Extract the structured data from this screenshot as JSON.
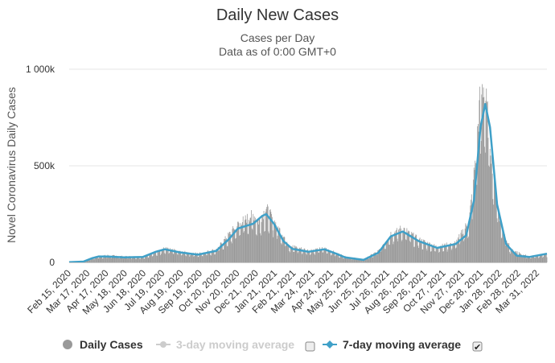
{
  "chart_data": {
    "type": "bar",
    "title": "Daily New Cases",
    "subtitle": [
      "Cases per Day",
      "Data as of 0:00 GMT+0"
    ],
    "ylabel": "Novel Coronavirus Daily Cases",
    "xlabel": "",
    "ylim": [
      0,
      1000000
    ],
    "yticks": [
      {
        "value": 0,
        "label": "0"
      },
      {
        "value": 500000,
        "label": "500k"
      },
      {
        "value": 1000000,
        "label": "1 000k"
      }
    ],
    "xrange": [
      "2020-02-15",
      "2022-04-30"
    ],
    "xticks": [
      "Feb 15, 2020",
      "Mar 17, 2020",
      "Apr 17, 2020",
      "May 18, 2020",
      "Jun 18, 2020",
      "Jul 19, 2020",
      "Aug 19, 2020",
      "Sep 19, 2020",
      "Oct 20, 2020",
      "Nov 20, 2020",
      "Dec 21, 2020",
      "Jan 21, 2021",
      "Feb 21, 2021",
      "Mar 24, 2021",
      "Apr 24, 2021",
      "May 25, 2021",
      "Jun 25, 2021",
      "Jul 26, 2021",
      "Aug 26, 2021",
      "Sep 26, 2021",
      "Oct 27, 2021",
      "Nov 27, 2021",
      "Dec 28, 2021",
      "Jan 28, 2022",
      "Feb 28, 2022",
      "Mar 31, 2022"
    ],
    "grid": true,
    "legend_position": "bottom",
    "series": [
      {
        "name": "Daily Cases",
        "kind": "bar",
        "color": "#999999",
        "visible": true,
        "anchors": [
          {
            "x": "2020-02-15",
            "y": 2000
          },
          {
            "x": "2020-03-10",
            "y": 5000
          },
          {
            "x": "2020-04-01",
            "y": 28000
          },
          {
            "x": "2020-04-20",
            "y": 34000
          },
          {
            "x": "2020-05-18",
            "y": 28000
          },
          {
            "x": "2020-06-18",
            "y": 26000
          },
          {
            "x": "2020-07-10",
            "y": 50000
          },
          {
            "x": "2020-07-25",
            "y": 68000
          },
          {
            "x": "2020-08-19",
            "y": 52000
          },
          {
            "x": "2020-09-19",
            "y": 42000
          },
          {
            "x": "2020-10-20",
            "y": 62000
          },
          {
            "x": "2020-11-15",
            "y": 150000
          },
          {
            "x": "2020-11-28",
            "y": 190000
          },
          {
            "x": "2020-12-21",
            "y": 230000
          },
          {
            "x": "2020-12-30",
            "y": 195000
          },
          {
            "x": "2021-01-12",
            "y": 260000
          },
          {
            "x": "2021-01-25",
            "y": 200000
          },
          {
            "x": "2021-02-21",
            "y": 80000
          },
          {
            "x": "2021-03-24",
            "y": 58000
          },
          {
            "x": "2021-04-20",
            "y": 68000
          },
          {
            "x": "2021-05-25",
            "y": 28000
          },
          {
            "x": "2021-06-25",
            "y": 14000
          },
          {
            "x": "2021-07-20",
            "y": 55000
          },
          {
            "x": "2021-08-10",
            "y": 140000
          },
          {
            "x": "2021-08-30",
            "y": 165000
          },
          {
            "x": "2021-09-26",
            "y": 110000
          },
          {
            "x": "2021-10-27",
            "y": 75000
          },
          {
            "x": "2021-11-27",
            "y": 95000
          },
          {
            "x": "2021-12-20",
            "y": 200000
          },
          {
            "x": "2021-12-30",
            "y": 480000
          },
          {
            "x": "2022-01-08",
            "y": 800000
          },
          {
            "x": "2022-01-14",
            "y": 860000
          },
          {
            "x": "2022-01-20",
            "y": 700000
          },
          {
            "x": "2022-01-28",
            "y": 480000
          },
          {
            "x": "2022-02-10",
            "y": 200000
          },
          {
            "x": "2022-02-28",
            "y": 60000
          },
          {
            "x": "2022-03-31",
            "y": 28000
          },
          {
            "x": "2022-04-30",
            "y": 40000
          }
        ]
      },
      {
        "name": "3-day moving average",
        "kind": "line",
        "color": "#cccccc",
        "visible": false
      },
      {
        "name": "7-day moving average",
        "kind": "line",
        "color": "#3fa0c8",
        "visible": true,
        "points": [
          {
            "x": "2020-02-15",
            "y": 1000
          },
          {
            "x": "2020-03-10",
            "y": 4000
          },
          {
            "x": "2020-03-25",
            "y": 22000
          },
          {
            "x": "2020-04-05",
            "y": 31000
          },
          {
            "x": "2020-04-20",
            "y": 30000
          },
          {
            "x": "2020-05-18",
            "y": 26000
          },
          {
            "x": "2020-06-18",
            "y": 28000
          },
          {
            "x": "2020-07-10",
            "y": 55000
          },
          {
            "x": "2020-07-25",
            "y": 68000
          },
          {
            "x": "2020-08-19",
            "y": 52000
          },
          {
            "x": "2020-09-19",
            "y": 40000
          },
          {
            "x": "2020-10-20",
            "y": 60000
          },
          {
            "x": "2020-11-10",
            "y": 120000
          },
          {
            "x": "2020-11-25",
            "y": 175000
          },
          {
            "x": "2020-12-10",
            "y": 190000
          },
          {
            "x": "2020-12-21",
            "y": 200000
          },
          {
            "x": "2021-01-05",
            "y": 240000
          },
          {
            "x": "2021-01-12",
            "y": 250000
          },
          {
            "x": "2021-01-25",
            "y": 200000
          },
          {
            "x": "2021-02-10",
            "y": 110000
          },
          {
            "x": "2021-02-25",
            "y": 70000
          },
          {
            "x": "2021-03-24",
            "y": 55000
          },
          {
            "x": "2021-04-20",
            "y": 68000
          },
          {
            "x": "2021-05-10",
            "y": 45000
          },
          {
            "x": "2021-05-25",
            "y": 26000
          },
          {
            "x": "2021-06-25",
            "y": 13000
          },
          {
            "x": "2021-07-20",
            "y": 50000
          },
          {
            "x": "2021-08-10",
            "y": 135000
          },
          {
            "x": "2021-08-30",
            "y": 160000
          },
          {
            "x": "2021-09-26",
            "y": 110000
          },
          {
            "x": "2021-10-27",
            "y": 75000
          },
          {
            "x": "2021-11-27",
            "y": 95000
          },
          {
            "x": "2021-12-15",
            "y": 140000
          },
          {
            "x": "2021-12-28",
            "y": 320000
          },
          {
            "x": "2022-01-08",
            "y": 700000
          },
          {
            "x": "2022-01-16",
            "y": 820000
          },
          {
            "x": "2022-01-24",
            "y": 700000
          },
          {
            "x": "2022-02-05",
            "y": 300000
          },
          {
            "x": "2022-02-20",
            "y": 95000
          },
          {
            "x": "2022-03-10",
            "y": 35000
          },
          {
            "x": "2022-03-31",
            "y": 28000
          },
          {
            "x": "2022-04-30",
            "y": 45000
          }
        ]
      }
    ]
  },
  "legend": {
    "daily_label": "Daily Cases",
    "avg3_label": "3-day moving average",
    "avg3_checked": false,
    "avg7_label": "7-day moving average",
    "avg7_checked": true
  }
}
